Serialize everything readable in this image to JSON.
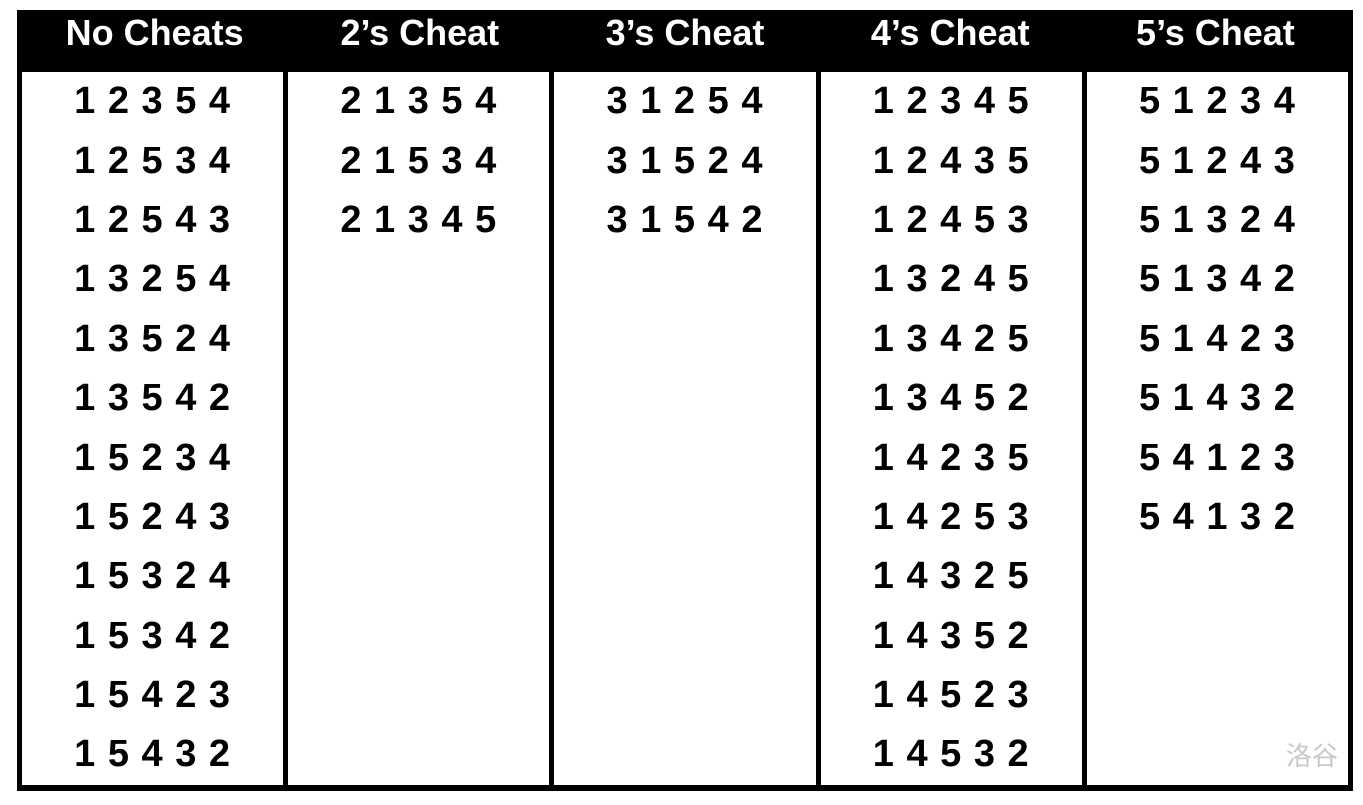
{
  "table": {
    "columns": [
      {
        "id": "no-cheats",
        "header": "No Cheats",
        "rows": [
          "1 2 3 5 4",
          "1 2 5 3 4",
          "1 2 5 4 3",
          "1 3 2 5 4",
          "1 3 5 2 4",
          "1 3 5 4 2",
          "1 5 2 3 4",
          "1 5 2 4 3",
          "1 5 3 2 4",
          "1 5 3 4 2",
          "1 5 4 2 3",
          "1 5 4 3 2"
        ]
      },
      {
        "id": "2s-cheat",
        "header": "2’s Cheat",
        "rows": [
          "2 1 3 5 4",
          "2 1 5 3 4",
          "2 1 3 4 5"
        ]
      },
      {
        "id": "3s-cheat",
        "header": "3’s Cheat",
        "rows": [
          "3 1 2 5 4",
          "3 1 5 2 4",
          "3 1 5 4 2"
        ]
      },
      {
        "id": "4s-cheat",
        "header": "4’s Cheat",
        "rows": [
          "1 2 3 4 5",
          "1 2 4 3 5",
          "1 2 4 5 3",
          "1 3 2 4 5",
          "1 3 4 2 5",
          "1 3 4 5 2",
          "1 4 2 3 5",
          "1 4 2 5 3",
          "1 4 3 2 5",
          "1 4 3 5 2",
          "1 4 5 2 3",
          "1 4 5 3 2"
        ]
      },
      {
        "id": "5s-cheat",
        "header": "5’s Cheat",
        "rows": [
          "5 1 2 3 4",
          "5 1 2 4 3",
          "5 1 3 2 4",
          "5 1 3 4 2",
          "5 1 4 2 3",
          "5 1 4 3 2",
          "5 4 1 2 3",
          "5 4 1 3 2"
        ]
      }
    ]
  },
  "watermark": "洛谷",
  "colors": {
    "header_bg": "#000000",
    "header_text": "#ffffff",
    "body_text": "#000000",
    "border": "#000000",
    "watermark_text": "#c9c9c9"
  }
}
